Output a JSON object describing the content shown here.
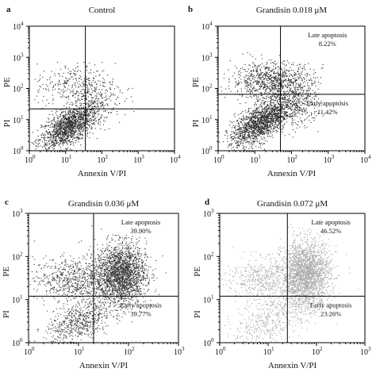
{
  "chart_data": [
    {
      "type": "scatter",
      "panel": "a",
      "title": "Control",
      "xlabel": "Annexin V/PI",
      "ylabel_top": "PE",
      "ylabel_bottom": "PI",
      "xscale": "log",
      "yscale": "log",
      "xlim": [
        1,
        10000
      ],
      "ylim": [
        1,
        10000
      ],
      "xticks": [
        "10",
        "10",
        "10",
        "10",
        "10"
      ],
      "xtick_exponents": [
        "0",
        "1",
        "2",
        "3",
        "4"
      ],
      "yticks": [
        "10",
        "10",
        "10",
        "10",
        "10"
      ],
      "ytick_exponents": [
        "0",
        "1",
        "2",
        "3",
        "4"
      ],
      "gate": {
        "x": 35,
        "y": 22
      },
      "clusters": [
        {
          "cx": 12,
          "cy": 6,
          "sx": 0.4,
          "sy": 0.32,
          "n": 1500,
          "rot": 0.5
        },
        {
          "cx": 18,
          "cy": 130,
          "sx": 0.55,
          "sy": 0.35,
          "n": 320,
          "rot": 0
        },
        {
          "cx": 60,
          "cy": 40,
          "sx": 0.4,
          "sy": 0.4,
          "n": 180,
          "rot": 0
        }
      ],
      "point_color": "#2b2b2b",
      "annotations": []
    },
    {
      "type": "scatter",
      "panel": "b",
      "title": "Grandisin 0.018 μM",
      "xlabel": "Annexin V/PI",
      "ylabel_top": "PE",
      "ylabel_bottom": "PI",
      "xscale": "log",
      "yscale": "log",
      "xlim": [
        1,
        10000
      ],
      "ylim": [
        1,
        10000
      ],
      "xticks": [
        "10",
        "10",
        "10",
        "10",
        "10"
      ],
      "xtick_exponents": [
        "0",
        "1",
        "2",
        "3",
        "4"
      ],
      "yticks": [
        "10",
        "10",
        "10",
        "10",
        "10"
      ],
      "ytick_exponents": [
        "0",
        "1",
        "2",
        "3",
        "4"
      ],
      "gate": {
        "x": 50,
        "y": 65
      },
      "clusters": [
        {
          "cx": 14,
          "cy": 8,
          "sx": 0.4,
          "sy": 0.32,
          "n": 1600,
          "rot": 0.5
        },
        {
          "cx": 30,
          "cy": 180,
          "sx": 0.55,
          "sy": 0.3,
          "n": 900,
          "rot": 0
        },
        {
          "cx": 120,
          "cy": 30,
          "sx": 0.35,
          "sy": 0.35,
          "n": 380,
          "rot": 0
        }
      ],
      "point_color": "#2b2b2b",
      "annotations": [
        {
          "quadrant": "upper-right",
          "label": "Late apoptosis",
          "value": "8.22%"
        },
        {
          "quadrant": "lower-right",
          "label": "Early apoptosis",
          "value": "11.42%"
        }
      ]
    },
    {
      "type": "scatter",
      "panel": "c",
      "title": "Grandisin 0.036 μM",
      "xlabel": "Annexin V/PI",
      "ylabel_top": "PE",
      "ylabel_bottom": "PI",
      "xscale": "log",
      "yscale": "log",
      "xlim": [
        1,
        1000
      ],
      "ylim": [
        1,
        1000
      ],
      "xticks": [
        "10",
        "10",
        "10",
        "10"
      ],
      "xtick_exponents": [
        "0",
        "1",
        "2",
        "3"
      ],
      "yticks": [
        "10",
        "10",
        "10",
        "10"
      ],
      "ytick_exponents": [
        "0",
        "1",
        "2",
        "3"
      ],
      "gate": {
        "x": 20,
        "y": 12
      },
      "clusters": [
        {
          "cx": 70,
          "cy": 40,
          "sx": 0.25,
          "sy": 0.35,
          "n": 2200,
          "rot": 0
        },
        {
          "cx": 8,
          "cy": 30,
          "sx": 0.4,
          "sy": 0.25,
          "n": 700,
          "rot": 0
        },
        {
          "cx": 10,
          "cy": 3,
          "sx": 0.35,
          "sy": 0.25,
          "n": 650,
          "rot": 0.4
        }
      ],
      "point_color": "#3a3a3a",
      "annotations": [
        {
          "quadrant": "upper-right",
          "label": "Late apoptosis",
          "value": "39.90%"
        },
        {
          "quadrant": "lower-right",
          "label": "Early apoptosis",
          "value": "39.77%"
        }
      ]
    },
    {
      "type": "scatter",
      "panel": "d",
      "title": "Grandisin 0.072 μM",
      "xlabel": "Annexin V/PI",
      "ylabel_top": "PE",
      "ylabel_bottom": "PI",
      "xscale": "log",
      "yscale": "log",
      "xlim": [
        1,
        1000
      ],
      "ylim": [
        1,
        1000
      ],
      "xticks": [
        "10",
        "10",
        "10",
        "10"
      ],
      "xtick_exponents": [
        "0",
        "1",
        "2",
        "3"
      ],
      "yticks": [
        "10",
        "10",
        "10",
        "10"
      ],
      "ytick_exponents": [
        "0",
        "1",
        "2",
        "3"
      ],
      "gate": {
        "x": 25,
        "y": 12
      },
      "clusters": [
        {
          "cx": 60,
          "cy": 40,
          "sx": 0.25,
          "sy": 0.38,
          "n": 2300,
          "rot": 0
        },
        {
          "cx": 8,
          "cy": 30,
          "sx": 0.4,
          "sy": 0.25,
          "n": 550,
          "rot": 0
        },
        {
          "cx": 12,
          "cy": 4,
          "sx": 0.4,
          "sy": 0.3,
          "n": 500,
          "rot": 0.4
        }
      ],
      "point_color": "#a8a8a8",
      "annotations": [
        {
          "quadrant": "upper-right",
          "label": "Late apoptosis",
          "value": "46.52%"
        },
        {
          "quadrant": "lower-right",
          "label": "Early apoptosis",
          "value": "23.26%"
        }
      ]
    }
  ]
}
